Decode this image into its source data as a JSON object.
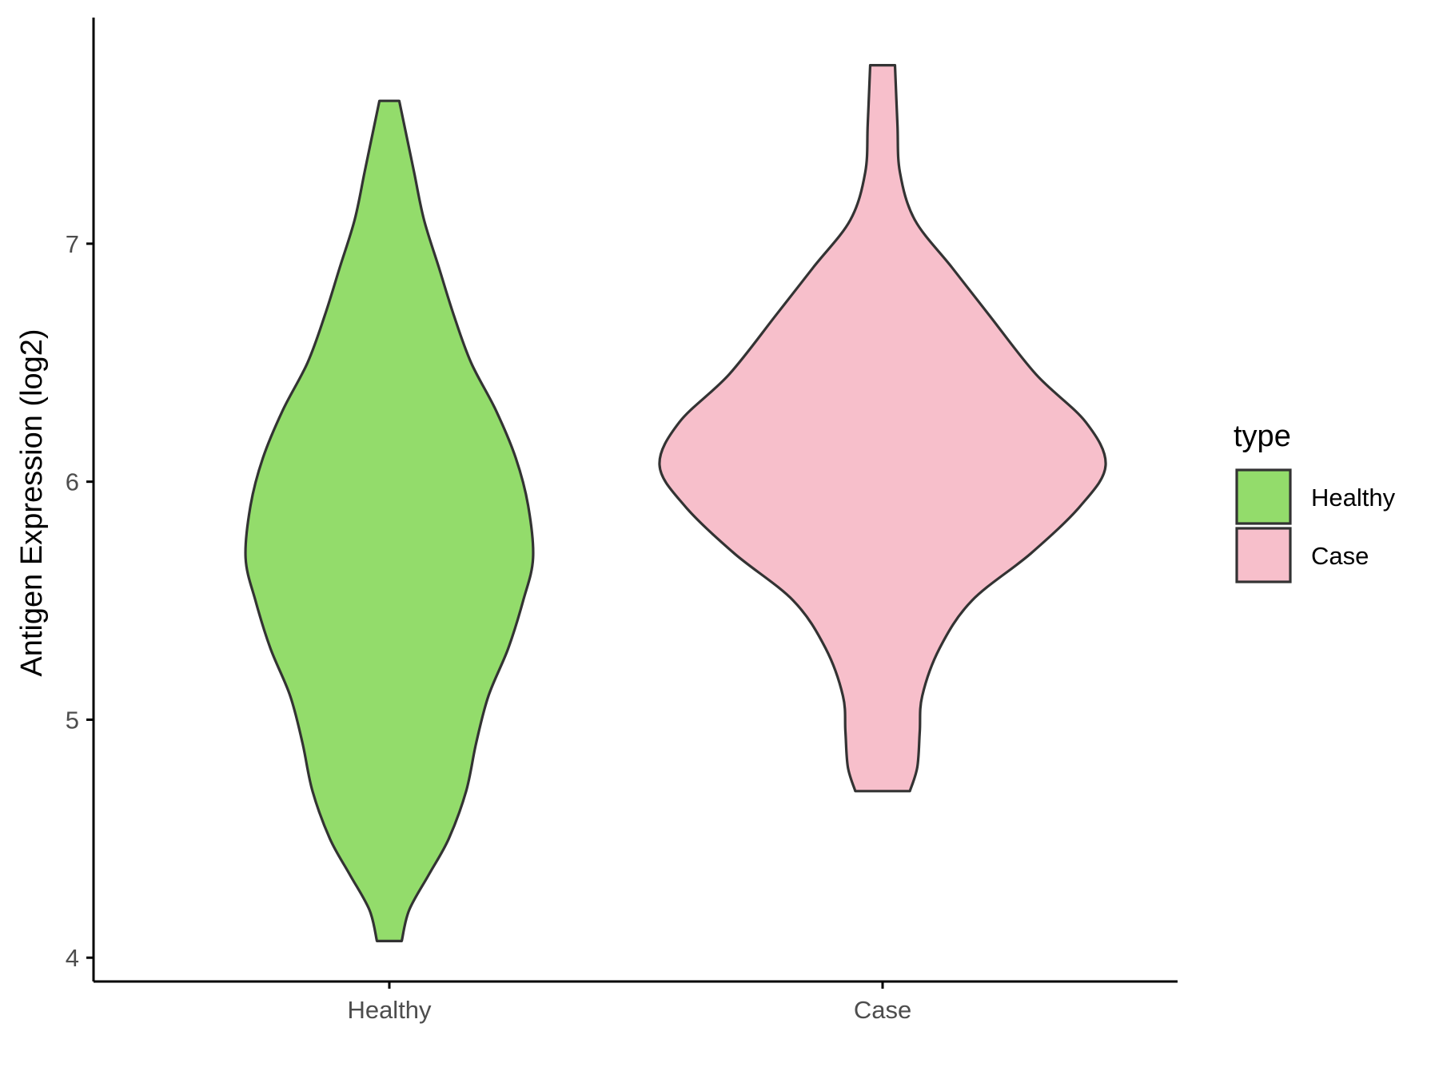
{
  "chart_data": {
    "type": "violin",
    "ylabel": "Antigen Expression (log2)",
    "xlabel": "",
    "ylim": [
      3.9,
      7.95
    ],
    "yticks": [
      4,
      5,
      6,
      7
    ],
    "categories": [
      "Healthy",
      "Case"
    ],
    "legend": {
      "title": "type",
      "position": "right",
      "entries": [
        {
          "label": "Healthy",
          "color": "#93dc6b"
        },
        {
          "label": "Case",
          "color": "#f7bfcb"
        }
      ]
    },
    "series": [
      {
        "category": "Healthy",
        "color": "#93dc6b",
        "outline": "#333333",
        "profile": [
          [
            4.07,
            0.05
          ],
          [
            4.2,
            0.08
          ],
          [
            4.35,
            0.16
          ],
          [
            4.5,
            0.24
          ],
          [
            4.7,
            0.31
          ],
          [
            4.9,
            0.35
          ],
          [
            5.1,
            0.4
          ],
          [
            5.3,
            0.48
          ],
          [
            5.5,
            0.54
          ],
          [
            5.68,
            0.58
          ],
          [
            5.9,
            0.56
          ],
          [
            6.1,
            0.51
          ],
          [
            6.3,
            0.43
          ],
          [
            6.5,
            0.33
          ],
          [
            6.7,
            0.26
          ],
          [
            6.9,
            0.2
          ],
          [
            7.1,
            0.14
          ],
          [
            7.3,
            0.1
          ],
          [
            7.5,
            0.06
          ],
          [
            7.6,
            0.04
          ]
        ]
      },
      {
        "category": "Case",
        "color": "#f7bfcb",
        "outline": "#333333",
        "profile": [
          [
            4.7,
            0.11
          ],
          [
            4.8,
            0.14
          ],
          [
            4.95,
            0.15
          ],
          [
            5.1,
            0.16
          ],
          [
            5.3,
            0.23
          ],
          [
            5.5,
            0.36
          ],
          [
            5.7,
            0.6
          ],
          [
            5.9,
            0.8
          ],
          [
            6.07,
            0.9
          ],
          [
            6.25,
            0.82
          ],
          [
            6.45,
            0.62
          ],
          [
            6.7,
            0.43
          ],
          [
            6.9,
            0.28
          ],
          [
            7.1,
            0.13
          ],
          [
            7.3,
            0.07
          ],
          [
            7.5,
            0.06
          ],
          [
            7.75,
            0.05
          ]
        ]
      }
    ]
  }
}
